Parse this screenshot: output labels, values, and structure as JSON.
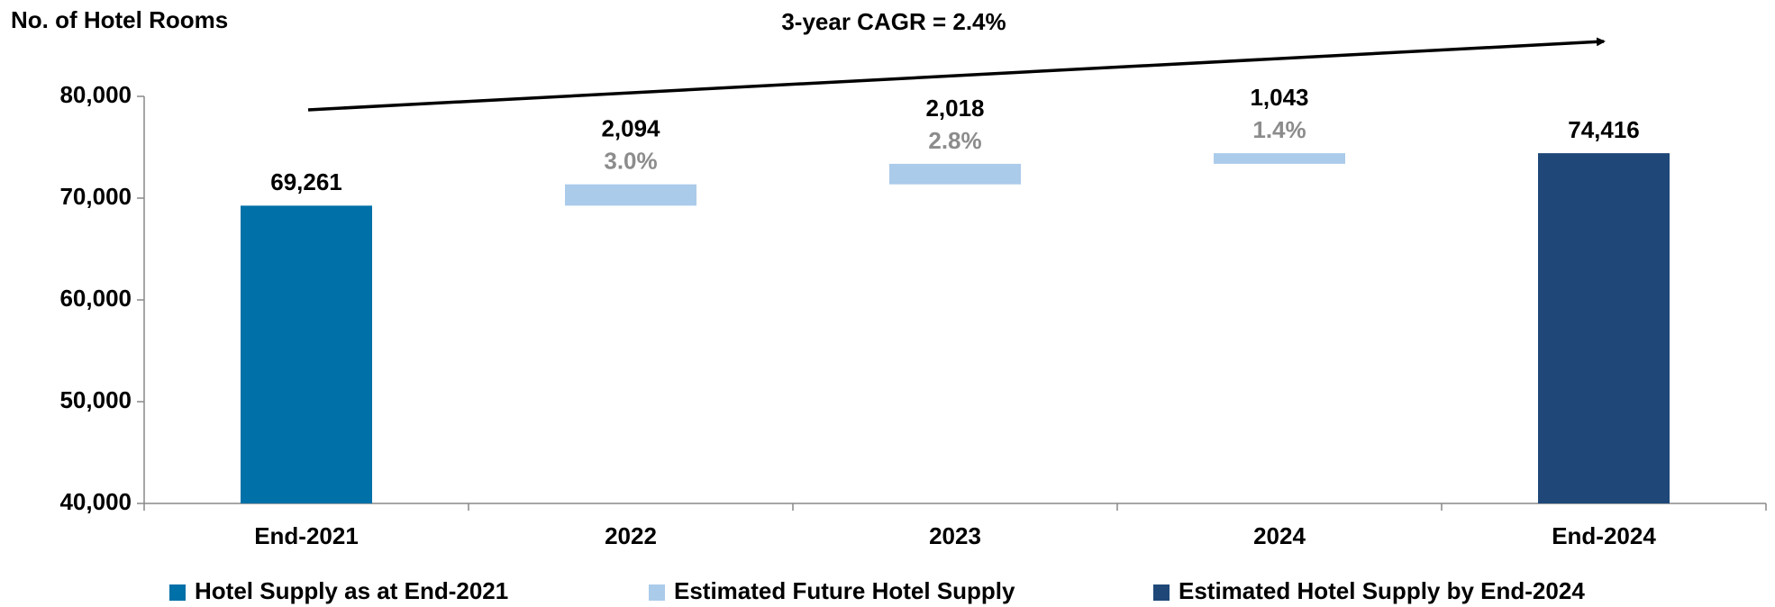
{
  "chart_data": {
    "type": "waterfall",
    "y_axis_label": "No. of Hotel Rooms",
    "annotation": "3-year CAGR = 2.4%",
    "categories": [
      "End-2021",
      "2022",
      "2023",
      "2024",
      "End-2024"
    ],
    "measure": [
      "absolute",
      "relative",
      "relative",
      "relative",
      "total"
    ],
    "series": [
      {
        "name": "Hotel Supply as at End-2021",
        "color": "#0070a8",
        "values": [
          69261,
          null,
          null,
          null,
          null
        ],
        "value_labels": [
          "69,261",
          null,
          null,
          null,
          null
        ]
      },
      {
        "name": "Estimated Future Hotel Supply",
        "color": "#abcbea",
        "values": [
          null,
          2094,
          2018,
          1043,
          null
        ],
        "value_labels": [
          null,
          "2,094",
          "2,018",
          "1,043",
          null
        ],
        "growth_labels": [
          null,
          "3.0%",
          "2.8%",
          "1.4%",
          null
        ]
      },
      {
        "name": "Estimated Hotel Supply by End-2024",
        "color": "#1f4878",
        "values": [
          null,
          null,
          null,
          null,
          74416
        ],
        "value_labels": [
          null,
          null,
          null,
          null,
          "74,416"
        ]
      }
    ],
    "ylim": [
      40000,
      80000
    ],
    "yticks": [
      {
        "value": 40000,
        "label": "40,000"
      },
      {
        "value": 50000,
        "label": "50,000"
      },
      {
        "value": 60000,
        "label": "60,000"
      },
      {
        "value": 70000,
        "label": "70,000"
      },
      {
        "value": 80000,
        "label": "80,000"
      }
    ],
    "legend": "bottom"
  }
}
